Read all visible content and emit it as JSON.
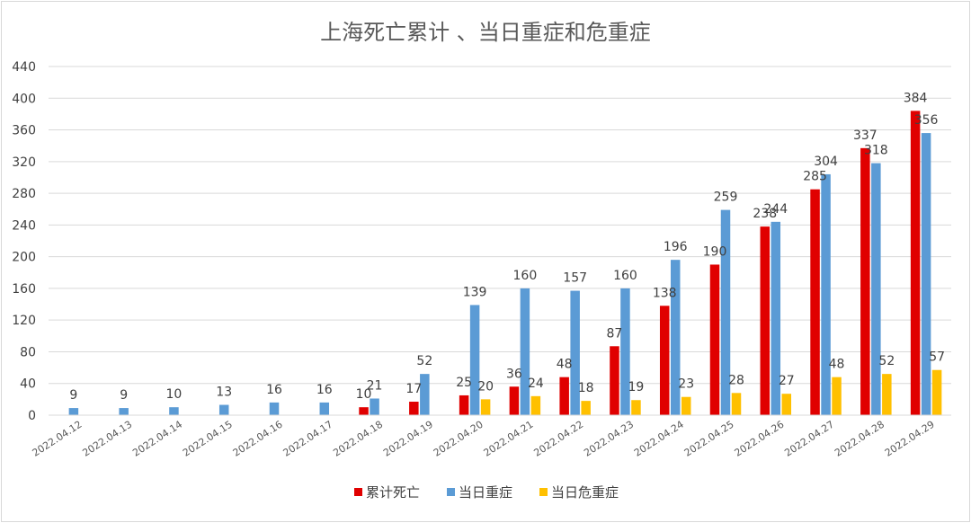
{
  "chart_data": {
    "type": "bar",
    "title": "上海死亡累计 、当日重症和危重症",
    "xlabel": "",
    "ylabel": "",
    "ylim": [
      0,
      440
    ],
    "yticks": [
      0,
      40,
      80,
      120,
      160,
      200,
      240,
      280,
      320,
      360,
      400,
      440
    ],
    "grid": true,
    "legend_position": "bottom",
    "categories": [
      "2022.04.12",
      "2022.04.13",
      "2022.04.14",
      "2022.04.15",
      "2022.04.16",
      "2022.04.17",
      "2022.04.18",
      "2022.04.19",
      "2022.04.20",
      "2022.04.21",
      "2022.04.22",
      "2022.04.23",
      "2022.04.24",
      "2022.04.25",
      "2022.04.26",
      "2022.04.27",
      "2022.04.28",
      "2022.04.29"
    ],
    "series": [
      {
        "name": "累计死亡",
        "color": "#e00000",
        "values": [
          null,
          null,
          null,
          null,
          null,
          null,
          10,
          17,
          25,
          36,
          48,
          87,
          138,
          190,
          238,
          285,
          337,
          384
        ]
      },
      {
        "name": "当日重症",
        "color": "#5b9bd5",
        "values": [
          9,
          9,
          10,
          13,
          16,
          16,
          21,
          52,
          139,
          160,
          157,
          160,
          196,
          259,
          244,
          304,
          318,
          356
        ]
      },
      {
        "name": "当日危重症",
        "color": "#ffc000",
        "values": [
          null,
          null,
          null,
          null,
          null,
          null,
          null,
          null,
          20,
          24,
          18,
          19,
          23,
          28,
          27,
          48,
          52,
          57
        ]
      }
    ]
  }
}
